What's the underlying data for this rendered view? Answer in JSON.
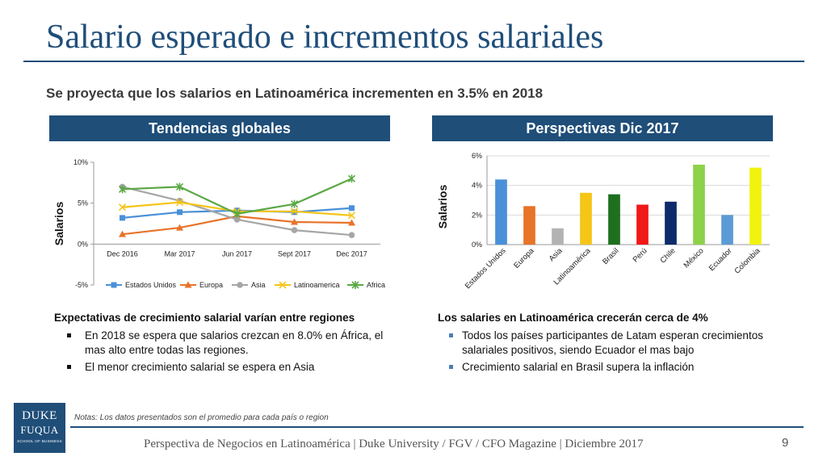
{
  "slide": {
    "title": "Salario esperado e incrementos salariales",
    "subtitle": "Se proyecta que los salarios en Latinoamérica incrementen en 3.5% en 2018",
    "left_header": "Tendencias globales",
    "right_header": "Perspectivas Dic 2017",
    "left_text": {
      "lead": "Expectativas de crecimiento salarial varían entre regiones",
      "bullets": [
        "En 2018 se espera que salarios crezcan en 8.0% en África, el mas alto entre todas las regiones.",
        "El menor crecimiento salarial se espera en Asia"
      ]
    },
    "right_text": {
      "lead": "Los salaries en Latinoamérica crecerán cerca de 4%",
      "bullets": [
        "Todos los países participantes de Latam esperan crecimientos salariales positivos, siendo Ecuador el mas bajo",
        "Crecimiento salarial en Brasil supera la inflación"
      ]
    },
    "logo": {
      "line1": "DUKE",
      "line2": "FUQUA",
      "line3": "SCHOOL OF BUSINESS"
    },
    "notes": "Notas:  Los datos presentados son el promedio para cada país o region",
    "footer": "Perspectiva de Negocios en Latinoamérica | Duke University / FGV / CFO Magazine | Diciembre 2017",
    "page_number": "9"
  },
  "chart_data": [
    {
      "type": "line",
      "title": "",
      "ylabel": "Salarios",
      "xlabel": "",
      "categories": [
        "Dec 2016",
        "Mar 2017",
        "Jun 2017",
        "Sept 2017",
        "Dec 2017"
      ],
      "ylim": [
        -5,
        10
      ],
      "yticks": [
        "-5%",
        "0%",
        "5%",
        "10%"
      ],
      "legend": "bottom",
      "grid": false,
      "series": [
        {
          "name": "Estados Unidos",
          "color": "#4a90d9",
          "marker": "square",
          "values": [
            3.2,
            3.9,
            4.1,
            3.9,
            4.4
          ]
        },
        {
          "name": "Europa",
          "color": "#e8732a",
          "marker": "triangle",
          "values": [
            1.2,
            2.0,
            3.4,
            2.7,
            2.6
          ]
        },
        {
          "name": "Asia",
          "color": "#a6a6a6",
          "marker": "circle",
          "values": [
            7.0,
            5.3,
            3.0,
            1.7,
            1.1
          ]
        },
        {
          "name": "Latinoamerica",
          "color": "#f5c518",
          "marker": "x",
          "values": [
            4.5,
            5.1,
            4.0,
            4.0,
            3.5
          ]
        },
        {
          "name": "Africa",
          "color": "#5aa845",
          "marker": "star",
          "values": [
            6.7,
            7.0,
            3.7,
            4.9,
            8.0
          ]
        }
      ]
    },
    {
      "type": "bar",
      "title": "",
      "ylabel": "Salarios",
      "xlabel": "",
      "ylim": [
        0,
        6
      ],
      "yticks": [
        "0%",
        "2%",
        "4%",
        "6%"
      ],
      "grid": true,
      "categories": [
        "Estados Unidos",
        "Europa",
        "Asia",
        "Latinoamérica",
        "Brasil",
        "Perú",
        "Chile",
        "México",
        "Ecuador",
        "Colombia"
      ],
      "values": [
        4.4,
        2.6,
        1.1,
        3.5,
        3.4,
        2.7,
        2.9,
        5.4,
        2.0,
        5.2
      ],
      "colors": [
        "#4a90d9",
        "#e8732a",
        "#b3b3b3",
        "#f5c518",
        "#1e6f1e",
        "#f01818",
        "#0d2a6b",
        "#8ed14a",
        "#5b9bd5",
        "#f2f20f"
      ]
    }
  ]
}
